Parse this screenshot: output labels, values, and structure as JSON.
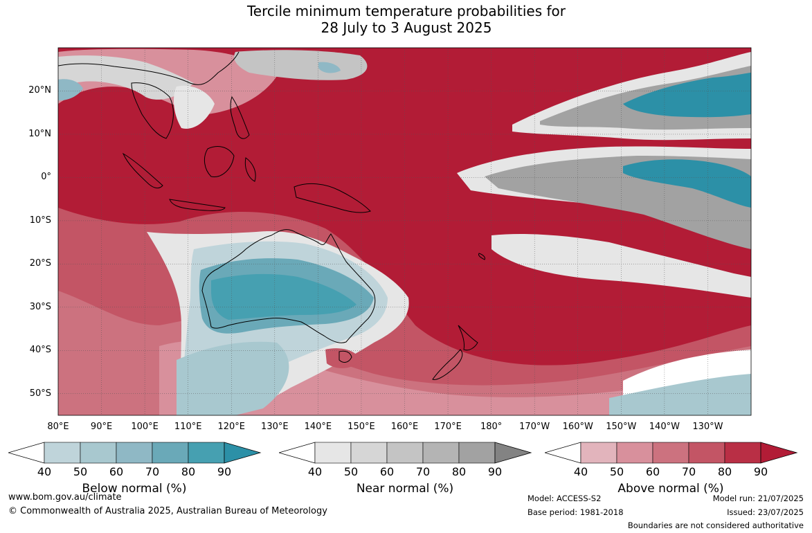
{
  "title": {
    "line1": "Tercile minimum temperature probabilities for",
    "line2": "28 July to 3 August 2025"
  },
  "map": {
    "lat_labels": [
      "20°N",
      "10°N",
      "0°",
      "10°S",
      "20°S",
      "30°S",
      "40°S",
      "50°S"
    ],
    "lat_values": [
      20,
      10,
      0,
      -10,
      -20,
      -30,
      -40,
      -50
    ],
    "lon_labels": [
      "80°E",
      "90°E",
      "100°E",
      "110°E",
      "120°E",
      "130°E",
      "140°E",
      "150°E",
      "160°E",
      "170°E",
      "180°",
      "170°W",
      "160°W",
      "150°W",
      "140°W",
      "130°W"
    ],
    "lon_values": [
      80,
      90,
      100,
      110,
      120,
      130,
      140,
      150,
      160,
      170,
      180,
      190,
      200,
      210,
      220,
      230
    ],
    "extent": {
      "lon_min": 80,
      "lon_max": 240,
      "lat_min": -55,
      "lat_max": 30
    },
    "dominant_category": "Above normal"
  },
  "colorbars": [
    {
      "name": "Below normal (%)",
      "ticks": [
        "40",
        "50",
        "60",
        "70",
        "80",
        "90"
      ],
      "colors": [
        "#bfd4da",
        "#a8c8cf",
        "#8fb8c5",
        "#6aa9b8",
        "#46a0b1",
        "#2c90a7"
      ]
    },
    {
      "name": "Near normal (%)",
      "ticks": [
        "40",
        "50",
        "60",
        "70",
        "80",
        "90"
      ],
      "colors": [
        "#e6e6e6",
        "#d6d6d6",
        "#c4c4c4",
        "#b4b4b4",
        "#a2a2a2",
        "#838383"
      ]
    },
    {
      "name": "Above normal (%)",
      "ticks": [
        "40",
        "50",
        "60",
        "70",
        "80",
        "90"
      ],
      "colors": [
        "#e2b4bc",
        "#d8909c",
        "#cc727f",
        "#c35565",
        "#b92f45",
        "#b21c36"
      ]
    }
  ],
  "footer": {
    "website": "www.bom.gov.au/climate",
    "copyright": "© Commonwealth of Australia 2025, Australian Bureau of Meteorology",
    "model": "Model: ACCESS-S2",
    "base_period": "Base period: 1981-2018",
    "model_run": "Model run: 21/07/2025",
    "issued": "Issued: 23/07/2025",
    "disclaimer": "Boundaries are not considered authoritative"
  }
}
